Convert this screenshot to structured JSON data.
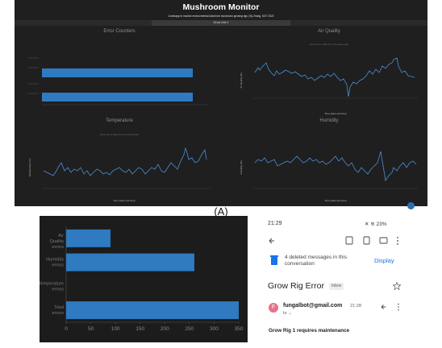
{
  "figure": {
    "panel_a_caption": "(A)"
  },
  "dashboard": {
    "title": "Mushroom Monitor",
    "subtitle": "A webapp to monitor environmental data from mushroom growing rigs | By Zhang, SGT 2023",
    "tabs": [
      "",
      "Grow Unit 1",
      ""
    ],
    "charts": {
      "error_counters": {
        "title": "Error Counters"
      },
      "air_quality": {
        "title": "Air Quality",
        "subtitle": "show unit 1 data from the past week",
        "xlabel": "Time (date and time)",
        "ylabel": "Air Quality (%)"
      },
      "temperature": {
        "title": "Temperature",
        "subtitle": "show unit 1 data from the past week",
        "xlabel": "Time (date and time)",
        "ylabel": "Temperature (°C)"
      },
      "humidity": {
        "title": "Humidity",
        "subtitle": "",
        "xlabel": "Time (date and time)",
        "ylabel": "Humidity (%)"
      }
    }
  },
  "chart_data": [
    {
      "type": "bar",
      "orientation": "horizontal",
      "categories": [
        "Air Quality errors",
        "Humidity errors",
        "Temperature errors",
        "Total errors"
      ],
      "values": [
        90,
        260,
        0,
        350
      ],
      "xlabel": "",
      "ylabel": "",
      "xlim": [
        0,
        350
      ],
      "xticks": [
        "0",
        "50",
        "100",
        "150",
        "200",
        "250",
        "300",
        "350"
      ],
      "grid": false,
      "color": "#2f7ac1"
    }
  ],
  "email": {
    "status_time": "21:29",
    "status_right": "23%",
    "banner_text": "4 deleted messages in this conversation",
    "banner_action": "Display",
    "subject": "Grow Rig Error",
    "label_chip": "Inbox",
    "avatar_letter": "F",
    "sender": "fungalbot@gmail.com",
    "sent_time": "21:28",
    "to_line": "to",
    "body": "Grow Rig 1 requires maintenance",
    "accent": "#1a73e8"
  }
}
